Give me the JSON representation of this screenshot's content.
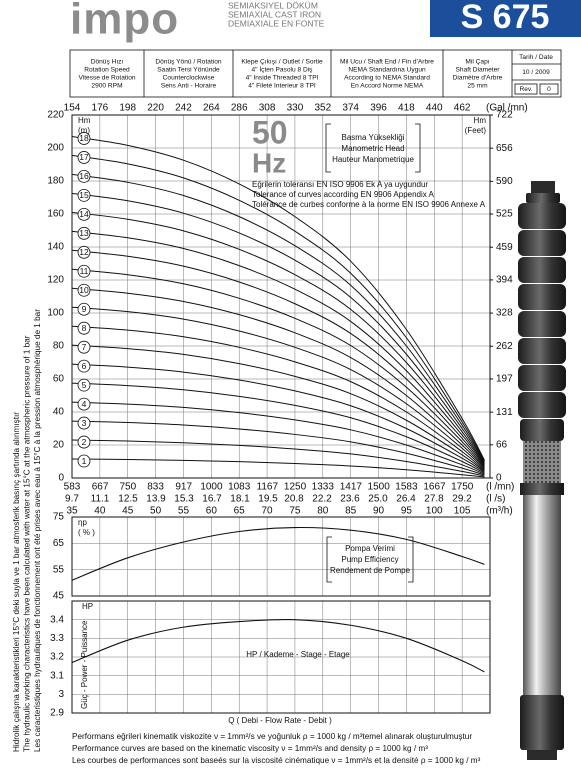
{
  "header": {
    "logo": "impo",
    "subtitle": [
      "SEMIAKSIYEL DÖKÜM",
      "SEMIAXIAL CAST IRON",
      "DEMIAXIALE EN FONTE"
    ],
    "model": "S 675"
  },
  "info": {
    "columns": [
      [
        "Dönüş Hızı",
        "Rotation Speed",
        "Vitesse de Rotation",
        "2900 RPM"
      ],
      [
        "Dönüş Yönü / Rotation",
        "Saatin Tersi Yönünde",
        "Counterclockwise",
        "Sens Anti - Horaire"
      ],
      [
        "Klepe Çıkışı / Outlet / Sortie",
        "4\" İçten Pasolu  8 Diş",
        "4\" Inside Threaded  8 TPI",
        "4\" Fileté Interieur  8 TPI"
      ],
      [
        "Mil Ucu / Shaft End / Fin d'Arbre",
        "NEMA Standardına Uygun",
        "According to NEMA Standard",
        "En Accord Norme NEMA"
      ],
      [
        "Mil Çapı",
        "Shaft Diameter",
        "Diamètre d'Arbre",
        "25 mm"
      ]
    ],
    "date": {
      "label": "Tarih / Date",
      "value": "10 / 2009",
      "rev_label": "Rev.",
      "rev": "0"
    }
  },
  "side_note": [
    "Hidrolik çalışma karakteristikleri 15°C deki suyla ve 1 bar atmosferik basınç şartında alınmıştır",
    "The hydraulic working characteristics have been calculated with water at 15°C at the atmospheric pressure of 1 bar",
    "Les caracteristiques hydrauliques de fonctionnement ont été prises avec eau à 15°C à la pression atmosphèrique de 1 bar"
  ],
  "footer": [
    "Performans eğrileri kinematik viskozite ν = 1mm²/s ve yoğunluk ρ = 1000 kg / m³temel alınarak oluşturulmuştur",
    "Performance curves are based on the kinematic viscosity ν = 1mm²/s and density ρ = 1000 kg / m³",
    "Les courbes de performances sont baseés sur la viscosité cinématique ν = 1mm²/s et la densité ρ = 1000 kg / m³"
  ],
  "chart_data": [
    {
      "type": "line",
      "frequency": "50",
      "frequency_unit": "Hz",
      "head_box": [
        "Basma Yüksekliği",
        "Manometric Head",
        "Hauteur Manometrique"
      ],
      "tolerance": [
        "Eğrilerin toleransı EN ISO 9906 Ek A ya uygundur",
        "Tolerance of curves according EN 9906 Appendix A",
        "Tolérance de curbes conforme à la norme EN ISO 9906 Annexe A"
      ],
      "ylabel": [
        "Hm",
        "(m)"
      ],
      "y2label": [
        "Hm",
        "(Feet)"
      ],
      "grid": true,
      "x": [
        35,
        45,
        55,
        65,
        75,
        85,
        95,
        105,
        109
      ],
      "xlim": [
        35,
        110
      ],
      "xticks": [
        35,
        40,
        45,
        50,
        55,
        60,
        65,
        70,
        75,
        80,
        85,
        90,
        95,
        100,
        105
      ],
      "xlabel": "(m³/h)",
      "x_axes": [
        {
          "label": "(Gal /mn)",
          "position": "top",
          "lim": [
            154,
            484
          ],
          "ticks": [
            154,
            176,
            198,
            220,
            242,
            264,
            286,
            308,
            330,
            352,
            374,
            396,
            418,
            440,
            462
          ]
        },
        {
          "label": "(l /mn)",
          "position": "bottom",
          "lim": [
            583,
            1833
          ],
          "ticks": [
            583,
            667,
            750,
            833,
            917,
            1000,
            1083,
            1167,
            1250,
            1333,
            1417,
            1500,
            1583,
            1667,
            1750
          ]
        },
        {
          "label": "(l /s)",
          "position": "bottom",
          "lim": [
            9.7,
            30.6
          ],
          "ticks": [
            9.7,
            11.1,
            12.5,
            13.9,
            15.3,
            16.7,
            18.1,
            19.5,
            20.8,
            22.2,
            23.6,
            {
              "value": 25,
              "label": "25.0"
            },
            26.4,
            27.8,
            29.2
          ]
        }
      ],
      "ylim": [
        0,
        220
      ],
      "yticks": [
        0,
        20,
        40,
        60,
        80,
        100,
        120,
        140,
        160,
        180,
        200,
        220
      ],
      "y2lim": [
        0,
        722
      ],
      "y2ticks": [
        0,
        66,
        131,
        197,
        262,
        328,
        394,
        459,
        525,
        590,
        656,
        722
      ],
      "series": [
        {
          "name": "1",
          "color": "#111111",
          "values": [
            11.5,
            11.2,
            10.7,
            9.9,
            8.8,
            7.3,
            5,
            2,
            0.6
          ]
        },
        {
          "name": "2",
          "color": "#111111",
          "values": [
            23,
            22.4,
            21.4,
            19.8,
            17.6,
            14.6,
            10,
            4,
            1.2
          ]
        },
        {
          "name": "3",
          "color": "#111111",
          "values": [
            34.5,
            33.6,
            32.1,
            29.7,
            26.4,
            21.9,
            15,
            6,
            1.8
          ]
        },
        {
          "name": "4",
          "color": "#111111",
          "values": [
            46,
            44.8,
            42.8,
            39.6,
            35.2,
            29.2,
            20,
            8,
            2.4
          ]
        },
        {
          "name": "5",
          "color": "#111111",
          "values": [
            57.5,
            56,
            53.5,
            49.5,
            44,
            36.5,
            25,
            10,
            3
          ]
        },
        {
          "name": "6",
          "color": "#111111",
          "values": [
            69,
            67.2,
            64.2,
            59.4,
            52.8,
            43.8,
            30,
            12,
            3.6
          ]
        },
        {
          "name": "7",
          "color": "#111111",
          "values": [
            80.5,
            78.4,
            74.9,
            69.3,
            61.6,
            51.1,
            35,
            14,
            4.2
          ]
        },
        {
          "name": "8",
          "color": "#111111",
          "values": [
            92,
            89.6,
            85.6,
            79.2,
            70.4,
            58.4,
            40,
            16,
            4.8
          ]
        },
        {
          "name": "9",
          "color": "#111111",
          "values": [
            103.5,
            100.8,
            96.3,
            89.1,
            79.2,
            65.7,
            45,
            18,
            5.4
          ]
        },
        {
          "name": "10",
          "color": "#111111",
          "values": [
            115,
            112,
            107,
            99,
            88,
            73,
            50,
            20,
            6
          ]
        },
        {
          "name": "11",
          "color": "#111111",
          "values": [
            126.5,
            123.2,
            117.7,
            108.9,
            96.8,
            80.3,
            55,
            22,
            6.6
          ]
        },
        {
          "name": "12",
          "color": "#111111",
          "values": [
            138,
            134.4,
            128.4,
            118.8,
            105.6,
            87.6,
            60,
            24,
            7.2
          ]
        },
        {
          "name": "13",
          "color": "#111111",
          "values": [
            149.5,
            145.6,
            139.1,
            128.7,
            114.4,
            94.9,
            65,
            26,
            7.8
          ]
        },
        {
          "name": "14",
          "color": "#111111",
          "values": [
            161,
            156.8,
            149.8,
            138.6,
            123.2,
            102.2,
            70,
            28,
            8.4
          ]
        },
        {
          "name": "15",
          "color": "#111111",
          "values": [
            172.5,
            168,
            160.5,
            148.5,
            132,
            109.5,
            75,
            30,
            9
          ]
        },
        {
          "name": "16",
          "color": "#111111",
          "values": [
            184,
            179.2,
            171.2,
            158.4,
            140.8,
            116.8,
            80,
            32,
            9.6
          ]
        },
        {
          "name": "17",
          "color": "#111111",
          "values": [
            195.5,
            190.4,
            181.9,
            168.3,
            149.6,
            124.1,
            85,
            34,
            10.2
          ]
        },
        {
          "name": "18",
          "color": "#111111",
          "values": [
            207,
            201.6,
            192.6,
            178.2,
            158.4,
            131.4,
            90,
            36,
            10.8
          ]
        }
      ]
    },
    {
      "type": "line",
      "ylabel": [
        "ηp",
        "( % )"
      ],
      "box": [
        "Pompa Verimi",
        "Pump Efficiency",
        "Rendement de Pompe"
      ],
      "grid": true,
      "x": [
        35,
        45,
        55,
        65,
        75,
        85,
        95,
        105,
        109
      ],
      "values": [
        51,
        59.5,
        65.5,
        69.5,
        71,
        70,
        66.5,
        60,
        57
      ],
      "color": "#111111",
      "xlim": [
        35,
        110
      ],
      "xticks": [
        35,
        40,
        45,
        50,
        55,
        60,
        65,
        70,
        75,
        80,
        85,
        90,
        95,
        100,
        105
      ],
      "ylim": [
        45,
        75
      ],
      "yticks": [
        45,
        55,
        65,
        75
      ]
    },
    {
      "type": "line",
      "ylabel": "HP",
      "ylabel2": "Güç - Power - Puissance",
      "annotation": "HP / Kademe - Stage - Etage",
      "xlabel": "Q  ( Debi - Flow Rate - Debit )",
      "grid": true,
      "x": [
        35,
        45,
        55,
        65,
        75,
        85,
        95,
        105,
        109
      ],
      "values": [
        3.17,
        3.29,
        3.36,
        3.39,
        3.4,
        3.37,
        3.3,
        3.18,
        3.12
      ],
      "color": "#111111",
      "xlim": [
        35,
        110
      ],
      "xticks": [
        35,
        40,
        45,
        50,
        55,
        60,
        65,
        70,
        75,
        80,
        85,
        90,
        95,
        100,
        105
      ],
      "ylim": [
        2.9,
        3.5
      ],
      "yticks": [
        2.9,
        3,
        3.1,
        3.2,
        3.3,
        3.4
      ]
    }
  ]
}
